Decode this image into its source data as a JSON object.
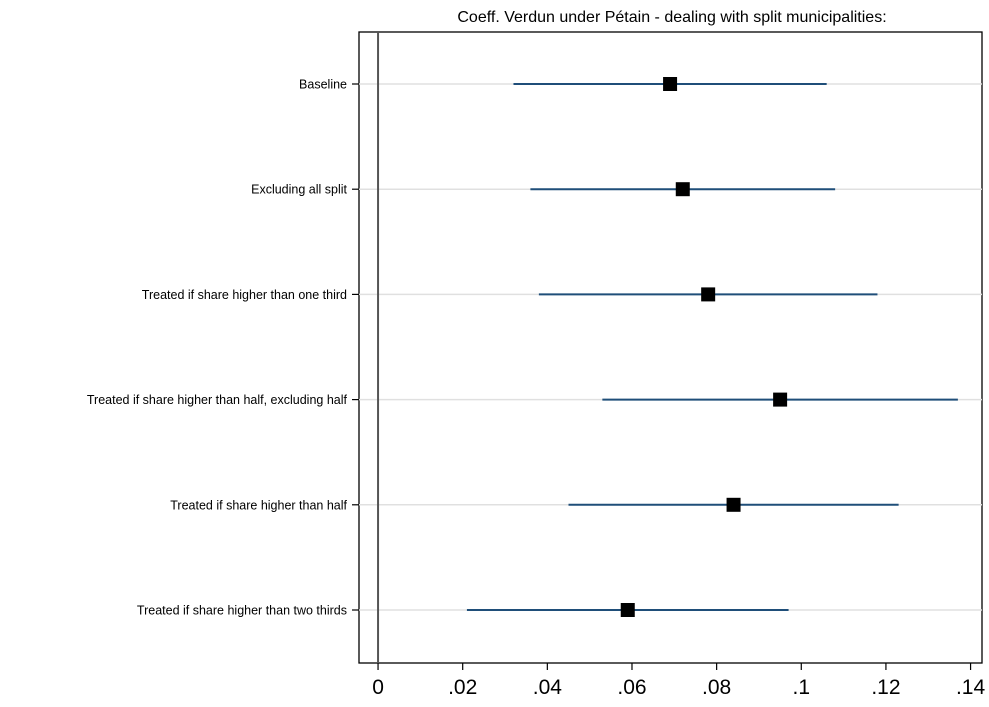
{
  "chart_data": {
    "type": "scatter",
    "title": "Coeff. Verdun under Pétain - dealing with split municipalities:",
    "xlabel": "",
    "ylabel": "",
    "xlim": [
      -0.0045,
      0.1427
    ],
    "x_ticks": [
      0,
      0.02,
      0.04,
      0.06,
      0.08,
      0.1,
      0.12,
      0.14
    ],
    "x_tick_labels": [
      "0",
      ".02",
      ".04",
      ".06",
      ".08",
      ".1",
      ".12",
      ".14"
    ],
    "reference_line_x": 0,
    "grid": "horizontal",
    "categories": [
      "Baseline",
      "Excluding all split",
      "Treated if share higher than one third",
      "Treated if share higher than half, excluding half",
      "Treated if share higher than half",
      "Treated if share higher than two thirds"
    ],
    "estimates": [
      0.069,
      0.072,
      0.078,
      0.095,
      0.084,
      0.059
    ],
    "ci_low": [
      0.032,
      0.036,
      0.038,
      0.053,
      0.045,
      0.021
    ],
    "ci_high": [
      0.106,
      0.108,
      0.118,
      0.137,
      0.123,
      0.097
    ],
    "colors": {
      "ci_line": "#1f4e79",
      "marker": "#000000",
      "grid": "#e0e0e0",
      "zero_line": "#555555"
    }
  }
}
